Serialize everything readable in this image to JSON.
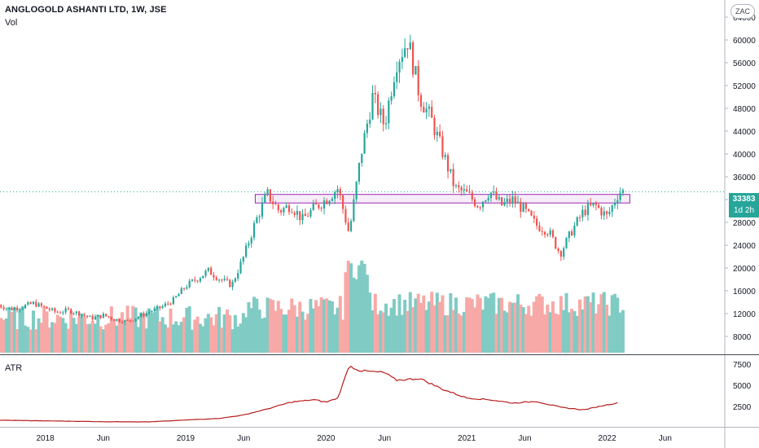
{
  "header": {
    "symbol_title": "ANGLOGOLD ASHANTI LTD, 1W, JSE",
    "volume_label": "Vol",
    "atr_label": "ATR",
    "currency": "ZAC"
  },
  "last_price": {
    "value": "33383",
    "countdown": "1d 2h"
  },
  "colors": {
    "up": "#26a69a",
    "down": "#ef5350",
    "vol_up": "#80cbc4",
    "vol_down": "#f7a9a7",
    "atr": "#b71c1c",
    "zone_stroke": "#9c27b0",
    "zone_fill": "#f3e5f5"
  },
  "chart_data": [
    {
      "type": "candlestick",
      "timeframe": "1W",
      "y_ticks": [
        "64000",
        "60000",
        "56000",
        "52000",
        "48000",
        "44000",
        "40000",
        "36000",
        "32000",
        "28000",
        "24000",
        "20000",
        "16000",
        "12000",
        "8000"
      ],
      "ylim": [
        5000,
        68000
      ],
      "x_ticks": [
        "2018",
        "Jun",
        "2019",
        "Jun",
        "2020",
        "Jun",
        "2021",
        "Jun",
        "2022",
        "Jun"
      ],
      "resistance_zone": {
        "low": 31400,
        "high": 32900,
        "start": "2019-07",
        "end": "2022-03"
      },
      "series": [
        {
          "date": "2017-09",
          "close": 13500
        },
        {
          "date": "2017-10",
          "close": 12800
        },
        {
          "date": "2017-11",
          "close": 13200
        },
        {
          "date": "2017-12",
          "close": 13800
        },
        {
          "date": "2018-01",
          "close": 13000
        },
        {
          "date": "2018-02",
          "close": 12200
        },
        {
          "date": "2018-03",
          "close": 12600
        },
        {
          "date": "2018-04",
          "close": 12000
        },
        {
          "date": "2018-05",
          "close": 11200
        },
        {
          "date": "2018-06",
          "close": 11700
        },
        {
          "date": "2018-07",
          "close": 11000
        },
        {
          "date": "2018-08",
          "close": 10600
        },
        {
          "date": "2018-09",
          "close": 11500
        },
        {
          "date": "2018-10",
          "close": 12400
        },
        {
          "date": "2018-11",
          "close": 13200
        },
        {
          "date": "2018-12",
          "close": 14400
        },
        {
          "date": "2019-01",
          "close": 16800
        },
        {
          "date": "2019-02",
          "close": 18200
        },
        {
          "date": "2019-03",
          "close": 19500
        },
        {
          "date": "2019-04",
          "close": 18000
        },
        {
          "date": "2019-05",
          "close": 17000
        },
        {
          "date": "2019-06",
          "close": 22000
        },
        {
          "date": "2019-07",
          "close": 28000
        },
        {
          "date": "2019-08",
          "close": 33000
        },
        {
          "date": "2019-09",
          "close": 30000
        },
        {
          "date": "2019-10",
          "close": 31000
        },
        {
          "date": "2019-11",
          "close": 28500
        },
        {
          "date": "2019-12",
          "close": 30500
        },
        {
          "date": "2020-01",
          "close": 32000
        },
        {
          "date": "2020-02",
          "close": 34000
        },
        {
          "date": "2020-03",
          "close": 26000
        },
        {
          "date": "2020-04",
          "close": 40000
        },
        {
          "date": "2020-05",
          "close": 50000
        },
        {
          "date": "2020-06",
          "close": 45000
        },
        {
          "date": "2020-07",
          "close": 56000
        },
        {
          "date": "2020-08",
          "close": 60000
        },
        {
          "date": "2020-09",
          "close": 50000
        },
        {
          "date": "2020-10",
          "close": 46000
        },
        {
          "date": "2020-11",
          "close": 40000
        },
        {
          "date": "2020-12",
          "close": 34000
        },
        {
          "date": "2021-01",
          "close": 33000
        },
        {
          "date": "2021-02",
          "close": 31000
        },
        {
          "date": "2021-03",
          "close": 33500
        },
        {
          "date": "2021-04",
          "close": 31000
        },
        {
          "date": "2021-05",
          "close": 32000
        },
        {
          "date": "2021-06",
          "close": 30000
        },
        {
          "date": "2021-07",
          "close": 27500
        },
        {
          "date": "2021-08",
          "close": 26500
        },
        {
          "date": "2021-09",
          "close": 22500
        },
        {
          "date": "2021-10",
          "close": 26500
        },
        {
          "date": "2021-11",
          "close": 30000
        },
        {
          "date": "2021-12",
          "close": 31000
        },
        {
          "date": "2022-01",
          "close": 29000
        },
        {
          "date": "2022-02",
          "close": 33383
        }
      ]
    },
    {
      "type": "bar",
      "name": "Vol",
      "y_ticks": [],
      "values": []
    },
    {
      "type": "line",
      "name": "ATR",
      "y_ticks": [
        "7500",
        "5000",
        "2500"
      ],
      "ylim": [
        500,
        8000
      ],
      "series": [
        {
          "date": "2017-09",
          "value": 880
        },
        {
          "date": "2018-01",
          "value": 800
        },
        {
          "date": "2018-06",
          "value": 700
        },
        {
          "date": "2018-10",
          "value": 680
        },
        {
          "date": "2019-01",
          "value": 900
        },
        {
          "date": "2019-04",
          "value": 1100
        },
        {
          "date": "2019-06",
          "value": 1500
        },
        {
          "date": "2019-08",
          "value": 2200
        },
        {
          "date": "2019-10",
          "value": 3000
        },
        {
          "date": "2019-12",
          "value": 3300
        },
        {
          "date": "2020-01",
          "value": 3000
        },
        {
          "date": "2020-02",
          "value": 3500
        },
        {
          "date": "2020-03",
          "value": 7300
        },
        {
          "date": "2020-04",
          "value": 6700
        },
        {
          "date": "2020-06",
          "value": 6500
        },
        {
          "date": "2020-07",
          "value": 5600
        },
        {
          "date": "2020-09",
          "value": 5800
        },
        {
          "date": "2020-11",
          "value": 4500
        },
        {
          "date": "2021-01",
          "value": 3500
        },
        {
          "date": "2021-03",
          "value": 3300
        },
        {
          "date": "2021-05",
          "value": 2900
        },
        {
          "date": "2021-07",
          "value": 3100
        },
        {
          "date": "2021-09",
          "value": 2400
        },
        {
          "date": "2021-11",
          "value": 2100
        },
        {
          "date": "2022-01",
          "value": 2700
        },
        {
          "date": "2022-02",
          "value": 2950
        }
      ]
    }
  ]
}
